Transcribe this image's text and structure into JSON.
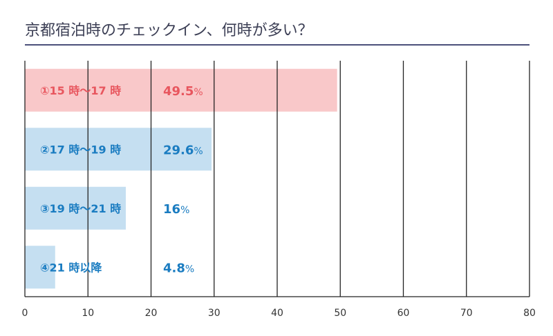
{
  "title": "京都宿泊時のチェックイン、何時が多い？",
  "chart_data": {
    "type": "bar",
    "orientation": "horizontal",
    "title": "京都宿泊時のチェックイン、何時が多い？",
    "categories": [
      "①15 時～17 時",
      "②17 時～19 時",
      "③19 時～21 時",
      "④21 時以降"
    ],
    "values": [
      49.5,
      29.6,
      16,
      4.8
    ],
    "value_labels": [
      "49.5",
      "29.6",
      "16",
      "4.8"
    ],
    "unit": "%",
    "xlim": [
      0,
      80
    ],
    "xticks": [
      0,
      10,
      20,
      30,
      40,
      50,
      60,
      70,
      80
    ],
    "grid": true,
    "colors": {
      "highlight_bar": "#f9c8c9",
      "highlight_text": "#e8565e",
      "bar": "#c5dff1",
      "text": "#1a7cc1",
      "grid": "#222222"
    }
  }
}
